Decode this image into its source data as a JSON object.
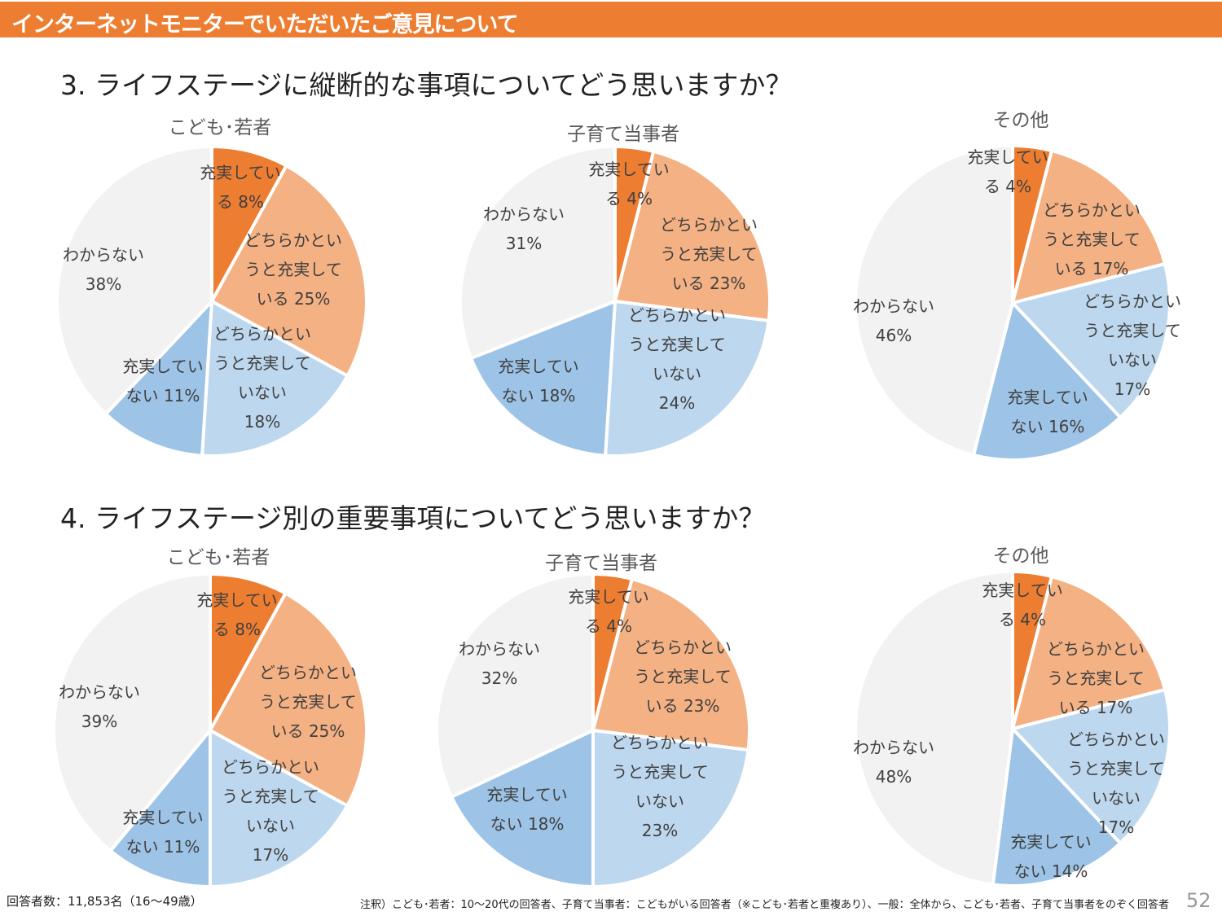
{
  "header": {
    "title": "インターネットモニターでいただいたご意見について"
  },
  "questions": [
    {
      "title": "3.  ライフステージに縦断的な事項についてどう思いますか？"
    },
    {
      "title": "4.  ライフステージ別の重要事項についてどう思いますか？"
    }
  ],
  "colors": [
    "#ED7D31",
    "#F4B183",
    "#BDD7EE",
    "#9DC3E6",
    "#F2F2F2"
  ],
  "chart_data": [
    {
      "type": "pie",
      "title": "こども･若者",
      "categories": [
        "充実している",
        "どちらかといえば充実している",
        "どちらかといえば充実していない",
        "充実していない",
        "わからない"
      ],
      "values": [
        8,
        25,
        18,
        11,
        38
      ],
      "labels": [
        [
          "充実してい",
          "る 8%"
        ],
        [
          "どちらかとい",
          "うと充実して",
          "いる 25%"
        ],
        [
          "どちらかとい",
          "うと充実して",
          "いない",
          "18%"
        ],
        [
          "充実してい",
          "ない 11%"
        ],
        [
          "わからない",
          "38%"
        ]
      ]
    },
    {
      "type": "pie",
      "title": "子育て当事者",
      "categories": [
        "充実している",
        "どちらかといえば充実している",
        "どちらかといえば充実していない",
        "充実していない",
        "わからない"
      ],
      "values": [
        4,
        23,
        24,
        18,
        31
      ],
      "labels": [
        [
          "充実してい",
          "る 4%"
        ],
        [
          "どちらかとい",
          "うと充実して",
          "いる 23%"
        ],
        [
          "どちらかとい",
          "うと充実して",
          "いない",
          "24%"
        ],
        [
          "充実してい",
          "ない 18%"
        ],
        [
          "わからない",
          "31%"
        ]
      ]
    },
    {
      "type": "pie",
      "title": "その他",
      "categories": [
        "充実している",
        "どちらかといえば充実している",
        "どちらかといえば充実していない",
        "充実していない",
        "わからない"
      ],
      "values": [
        4,
        17,
        17,
        16,
        46
      ],
      "labels": [
        [
          "充実してい",
          "る 4%"
        ],
        [
          "どちらかとい",
          "うと充実して",
          "いる 17%"
        ],
        [
          "どちらかとい",
          "うと充実して",
          "いない",
          "17%"
        ],
        [
          "充実してい",
          "ない 16%"
        ],
        [
          "わからない",
          "46%"
        ]
      ]
    },
    {
      "type": "pie",
      "title": "こども･若者",
      "categories": [
        "充実している",
        "どちらかといえば充実している",
        "どちらかといえば充実していない",
        "充実していない",
        "わからない"
      ],
      "values": [
        8,
        25,
        17,
        11,
        39
      ],
      "labels": [
        [
          "充実してい",
          "る 8%"
        ],
        [
          "どちらかとい",
          "うと充実して",
          "いる 25%"
        ],
        [
          "どちらかとい",
          "うと充実して",
          "いない",
          "17%"
        ],
        [
          "充実してい",
          "ない 11%"
        ],
        [
          "わからない",
          "39%"
        ]
      ]
    },
    {
      "type": "pie",
      "title": "子育て当事者",
      "categories": [
        "充実している",
        "どちらかといえば充実している",
        "どちらかといえば充実していない",
        "充実していない",
        "わからない"
      ],
      "values": [
        4,
        23,
        23,
        18,
        32
      ],
      "labels": [
        [
          "充実してい",
          "る 4%"
        ],
        [
          "どちらかとい",
          "うと充実して",
          "いる 23%"
        ],
        [
          "どちらかとい",
          "うと充実して",
          "いない",
          "23%"
        ],
        [
          "充実してい",
          "ない 18%"
        ],
        [
          "わからない",
          "32%"
        ]
      ]
    },
    {
      "type": "pie",
      "title": "その他",
      "categories": [
        "充実している",
        "どちらかといえば充実している",
        "どちらかといえば充実していない",
        "充実していない",
        "わからない"
      ],
      "values": [
        4,
        17,
        17,
        14,
        48
      ],
      "labels": [
        [
          "充実してい",
          "る 4%"
        ],
        [
          "どちらかとい",
          "うと充実して",
          "いる 17%"
        ],
        [
          "どちらかとい",
          "うと充実して",
          "いない",
          "17%"
        ],
        [
          "充実してい",
          "ない 14%"
        ],
        [
          "わからない",
          "48%"
        ]
      ]
    }
  ],
  "footer": {
    "respondents": "回答者数：11,853名（16〜49歳）",
    "note": "注釈）こども･若者：10～20代の回答者、子育て当事者：こどもがいる回答者（※こども･若者と重複あり）、一般：全体から、こども･若者、子育て当事者をのぞく回答者",
    "page": "52"
  }
}
